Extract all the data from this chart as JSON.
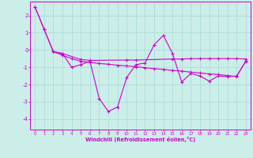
{
  "xlabel": "Windchill (Refroidissement éolien,°C)",
  "background_color": "#cceee8",
  "grid_color": "#aadddd",
  "line_color": "#cc00cc",
  "x_ticks": [
    0,
    1,
    2,
    3,
    4,
    5,
    6,
    7,
    8,
    9,
    10,
    11,
    12,
    13,
    14,
    15,
    16,
    17,
    18,
    19,
    20,
    21,
    22,
    23
  ],
  "ylim": [
    -4.6,
    2.8
  ],
  "xlim": [
    -0.5,
    23.5
  ],
  "yticks": [
    -4,
    -3,
    -2,
    -1,
    0,
    1,
    2
  ],
  "series1": [
    2.5,
    1.2,
    -0.1,
    -0.2,
    -1.0,
    -0.85,
    -0.65,
    -2.8,
    -3.55,
    -3.3,
    -1.6,
    -0.85,
    -0.75,
    0.3,
    0.85,
    -0.2,
    -1.85,
    -1.35,
    -1.5,
    -1.8,
    -1.5,
    -1.55,
    -1.5,
    -0.65
  ],
  "series2": [
    2.5,
    1.2,
    -0.1,
    -0.3,
    -0.5,
    -0.65,
    -0.72,
    -0.78,
    -0.82,
    -0.88,
    -0.92,
    -0.97,
    -1.02,
    -1.08,
    -1.12,
    -1.18,
    -1.22,
    -1.28,
    -1.33,
    -1.38,
    -1.42,
    -1.48,
    -1.53,
    -0.62
  ],
  "series3_x": [
    2,
    3,
    5,
    6,
    10,
    11,
    15,
    16,
    17,
    18,
    19,
    20,
    21,
    22,
    23
  ],
  "series3_y": [
    -0.1,
    -0.2,
    -0.55,
    -0.6,
    -0.58,
    -0.58,
    -0.52,
    -0.52,
    -0.5,
    -0.5,
    -0.5,
    -0.5,
    -0.5,
    -0.5,
    -0.52
  ]
}
